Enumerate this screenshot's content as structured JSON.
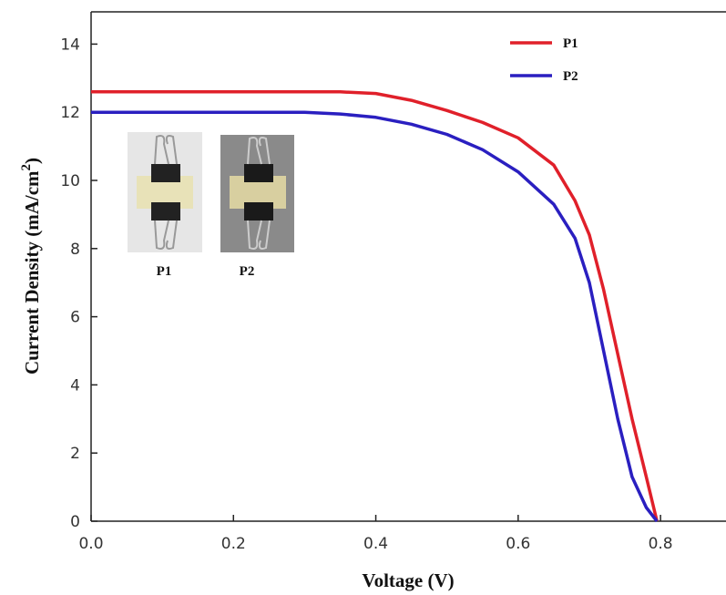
{
  "chart_data": {
    "type": "line",
    "xlabel": "Voltage (V)",
    "ylabel": [
      "Current Density (mA/cm",
      "2",
      ")"
    ],
    "x": [
      0,
      0.1,
      0.2,
      0.3,
      0.35,
      0.4,
      0.45,
      0.5,
      0.55,
      0.6,
      0.65,
      0.68,
      0.7,
      0.72,
      0.74,
      0.76,
      0.78,
      0.795
    ],
    "series": [
      {
        "name": "P1",
        "color": "#e0202a",
        "values": [
          12.6,
          12.6,
          12.6,
          12.6,
          12.6,
          12.55,
          12.35,
          12.05,
          11.7,
          11.25,
          10.45,
          9.4,
          8.4,
          6.8,
          4.9,
          3.0,
          1.3,
          0
        ]
      },
      {
        "name": "P2",
        "color": "#2a1fc0",
        "values": [
          12.0,
          12.0,
          12.0,
          12.0,
          11.95,
          11.85,
          11.65,
          11.35,
          10.9,
          10.25,
          9.3,
          8.3,
          7.0,
          5.0,
          3.0,
          1.3,
          0.4,
          0
        ]
      }
    ],
    "annotations": [
      "P1",
      "P2"
    ],
    "xlim": [
      0,
      0.892
    ],
    "ylim": [
      0,
      15
    ],
    "xticks": [
      {
        "value": 0,
        "label": "0.0"
      },
      0.2,
      0.4,
      0.6,
      0.8
    ],
    "yticks": [
      0,
      2,
      4,
      6,
      8,
      10,
      12,
      14
    ],
    "legend": "upper right"
  }
}
